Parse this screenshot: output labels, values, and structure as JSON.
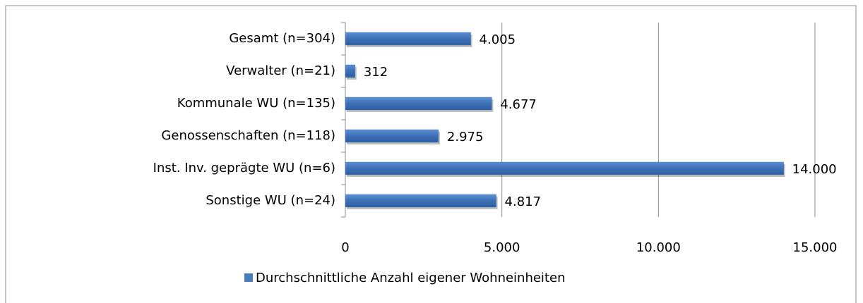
{
  "chart_data": {
    "type": "bar",
    "orientation": "horizontal",
    "categories": [
      "Gesamt (n=304)",
      "Verwalter (n=21)",
      "Kommunale WU (n=135)",
      "Genossenschaften (n=118)",
      "Inst. Inv. geprägte WU (n=6)",
      "Sonstige WU (n=24)"
    ],
    "series": [
      {
        "name": "Durchschnittliche Anzahl eigener Wohneinheiten",
        "color": "#4a7ebb",
        "values": [
          4005,
          312,
          4677,
          2975,
          14000,
          4817
        ],
        "value_labels": [
          "4.005",
          "312",
          "4.677",
          "2.975",
          "14.000",
          "4.817"
        ]
      }
    ],
    "xlim": [
      0,
      15000
    ],
    "xticks": [
      0,
      {
        "value": 5000,
        "label": "5.000"
      },
      {
        "value": 10000,
        "label": "10.000"
      },
      {
        "value": 15000,
        "label": "15.000"
      }
    ],
    "grid": true,
    "legend": "bottom"
  }
}
